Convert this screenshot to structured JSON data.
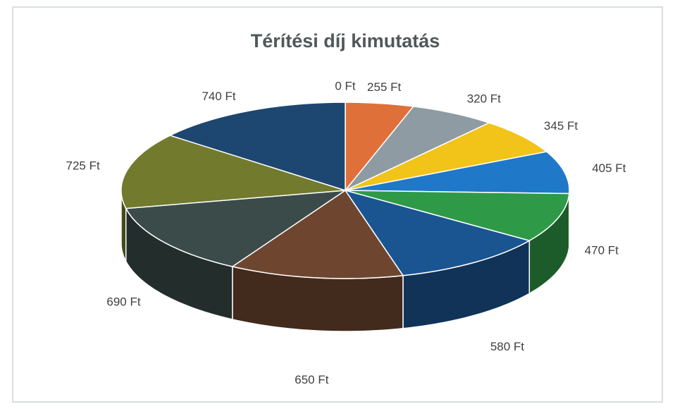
{
  "chart_data": {
    "type": "pie",
    "title": "Térítési díj kimutatás",
    "values": [
      0,
      255,
      320,
      345,
      405,
      470,
      580,
      650,
      690,
      725,
      740
    ],
    "value_labels": [
      "0 Ft",
      "255 Ft",
      "320 Ft",
      "345 Ft",
      "405 Ft",
      "470 Ft",
      "580 Ft",
      "650 Ft",
      "690 Ft",
      "725 Ft",
      "740 Ft"
    ],
    "colors": [
      "#3f6fb8",
      "#e0703a",
      "#8e9ba3",
      "#f2c318",
      "#1f78c8",
      "#2e9a48",
      "#1a5591",
      "#6e4630",
      "#3a4b4a",
      "#727a2e",
      "#1d4770"
    ]
  }
}
